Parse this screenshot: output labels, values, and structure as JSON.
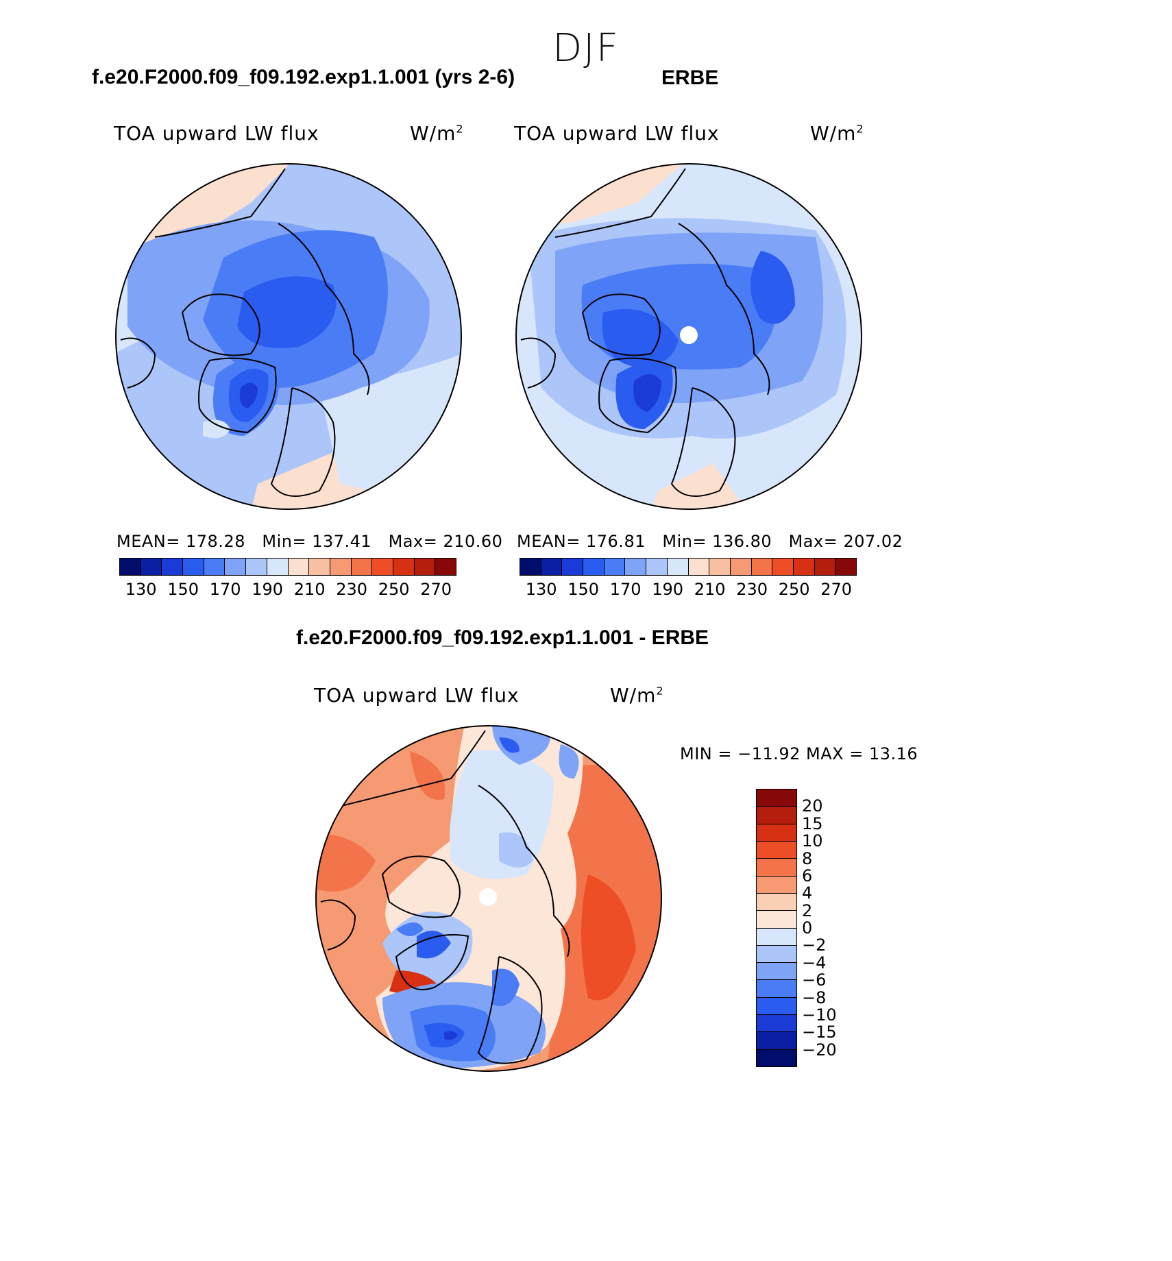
{
  "season": "DJF",
  "panels": [
    {
      "title": "f.e20.F2000.f09_f09.192.exp1.1.001 (yrs 2-6)",
      "variable": "TOA upward LW flux",
      "units_base": "W/m",
      "units_exp": "2",
      "mean_label": "MEAN=",
      "mean": "178.28",
      "min_label": "Min=",
      "min": "137.41",
      "max_label": "Max=",
      "max": "210.60",
      "ticks": [
        "130",
        "150",
        "170",
        "190",
        "210",
        "230",
        "250",
        "270"
      ]
    },
    {
      "title": "ERBE",
      "variable": "TOA upward LW flux",
      "units_base": "W/m",
      "units_exp": "2",
      "mean_label": "MEAN=",
      "mean": "176.81",
      "min_label": "Min=",
      "min": "136.80",
      "max_label": "Max=",
      "max": "207.02",
      "ticks": [
        "130",
        "150",
        "170",
        "190",
        "210",
        "230",
        "250",
        "270"
      ]
    }
  ],
  "diff": {
    "title": "f.e20.F2000.f09_f09.192.exp1.1.001 - ERBE",
    "variable": "TOA upward LW flux",
    "units_base": "W/m",
    "units_exp": "2",
    "minmax": "MIN = −11.92 MAX =  13.16",
    "ticks": [
      "20",
      "15",
      "10",
      "8",
      "6",
      "4",
      "2",
      "0",
      "−2",
      "−4",
      "−6",
      "−8",
      "−10",
      "−15",
      "−20"
    ]
  },
  "colors": {
    "abs_scale": [
      "#000d6b",
      "#0a1fa3",
      "#1a3bd6",
      "#2b5cf0",
      "#4a7df5",
      "#7fa3f7",
      "#adc6fa",
      "#d7e6fb",
      "#fbe0cf",
      "#f8c0a2",
      "#f59a72",
      "#f3744a",
      "#ee4e26",
      "#d83013",
      "#b51d0c",
      "#860808"
    ],
    "diff_scale": [
      "#860808",
      "#b51d0c",
      "#d83013",
      "#ee4e26",
      "#f3744a",
      "#f59a72",
      "#fbcfb4",
      "#fbe6d8",
      "#d7e6fb",
      "#adc6fa",
      "#7fa3f7",
      "#4a7df5",
      "#2b5cf0",
      "#1a3bd6",
      "#0a1fa3",
      "#000d6b"
    ]
  }
}
